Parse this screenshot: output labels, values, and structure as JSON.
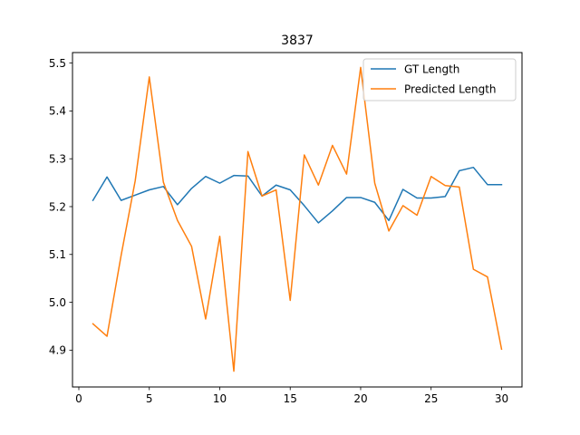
{
  "chart_data": {
    "type": "line",
    "title": "3837",
    "xlabel": "",
    "ylabel": "",
    "xlim": [
      -0.45,
      31.45
    ],
    "ylim": [
      4.823,
      5.522
    ],
    "xticks": [
      0,
      5,
      10,
      15,
      20,
      25,
      30
    ],
    "xtick_labels": [
      "0",
      "5",
      "10",
      "15",
      "20",
      "25",
      "30"
    ],
    "yticks": [
      4.9,
      5.0,
      5.1,
      5.2,
      5.3,
      5.4,
      5.5
    ],
    "ytick_labels": [
      "4.9",
      "5.0",
      "5.1",
      "5.2",
      "5.3",
      "5.4",
      "5.5"
    ],
    "grid": false,
    "legend_position": "upper right",
    "x": [
      1,
      2,
      3,
      4,
      5,
      6,
      7,
      8,
      9,
      10,
      11,
      12,
      13,
      14,
      15,
      16,
      17,
      18,
      19,
      20,
      21,
      22,
      23,
      24,
      25,
      26,
      27,
      28,
      29,
      30
    ],
    "series": [
      {
        "name": "GT Length",
        "color": "#1f77b4",
        "values": [
          5.213,
          5.262,
          5.213,
          5.224,
          5.235,
          5.242,
          5.204,
          5.238,
          5.263,
          5.249,
          5.265,
          5.264,
          5.222,
          5.245,
          5.235,
          5.202,
          5.166,
          5.191,
          5.219,
          5.219,
          5.209,
          5.171,
          5.236,
          5.218,
          5.218,
          5.221,
          5.275,
          5.282,
          5.246,
          5.246
        ]
      },
      {
        "name": "Predicted Length",
        "color": "#ff7f0e",
        "values": [
          4.955,
          4.929,
          5.098,
          5.254,
          5.471,
          5.251,
          5.171,
          5.117,
          4.965,
          5.138,
          4.856,
          5.315,
          5.222,
          5.235,
          5.004,
          5.308,
          5.245,
          5.328,
          5.268,
          5.491,
          5.249,
          5.149,
          5.202,
          5.182,
          5.263,
          5.244,
          5.241,
          5.069,
          5.053,
          4.902
        ]
      }
    ]
  }
}
